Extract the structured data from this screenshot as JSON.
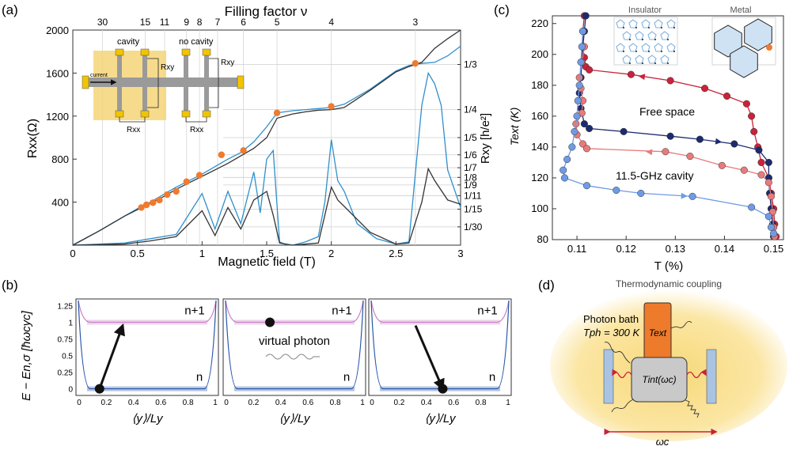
{
  "panel_labels": {
    "a": "(a)",
    "b": "(b)",
    "c": "(c)",
    "d": "(d)"
  },
  "colors": {
    "blue": "#2f8fcc",
    "black": "#333333",
    "orange": "#f07a2e",
    "red": "#c8233a",
    "pink": "#e77b7b",
    "navy": "#1c2a6e",
    "lightblue": "#6f9be4",
    "purple": "#c87fc6",
    "dotblue": "#2453a8"
  },
  "panel_a": {
    "top_axis_title": "Filling factor ν",
    "top_ticks": [
      "30",
      "15",
      "11",
      "9",
      "8",
      "7",
      "6",
      "5",
      "4",
      "3"
    ],
    "ylabel_left": "Rxx(Ω)",
    "ylabel_right": "Rxy [h/e²]",
    "xlabel": "Magnetic field (T)",
    "right_ticks": [
      "1/3",
      "1/4",
      "1/5",
      "1/6",
      "1/7",
      "1/8",
      "1/9",
      "1/11",
      "1/15",
      "1/30"
    ],
    "inset": {
      "cavity": "cavity",
      "no_cavity": "no cavity",
      "current": "current",
      "rxy1": "Rxy",
      "rxy2": "Rxy",
      "rxx1": "Rxx",
      "rxx2": "Rxx"
    }
  },
  "panel_b": {
    "ylabel": "E − En,σ [ħωcyc]",
    "xlabel": "⟨y⟩/Ly",
    "upper_label": "n+1",
    "lower_label": "n",
    "virtual_photon": "virtual photon",
    "yticks": [
      "1.25",
      "1",
      "0.75",
      "0.5",
      "0.25",
      "0"
    ],
    "xticks": [
      "0",
      "0.2",
      "0.4",
      "0.6",
      "0.8",
      "1"
    ],
    "dot_positions": [
      0.15,
      0.32,
      0.52
    ],
    "arrows": [
      [
        0.15,
        0.0,
        0.32,
        0.95
      ],
      null,
      [
        0.32,
        0.95,
        0.52,
        0.0
      ]
    ]
  },
  "panel_c": {
    "ylabel": "Text (K)",
    "xlabel": "T (%)",
    "insulator": "Insulator",
    "metal": "Metal",
    "free_space": "Free space",
    "cavity": "11.5-GHz cavity"
  },
  "panel_d": {
    "title": "Thermodynamic coupling",
    "bath_line1": "Photon bath",
    "bath_line2": "Tph = 300 K",
    "text_label": "Text",
    "tint_label": "Tint(ωc)",
    "omega_label": "ωc"
  },
  "chart_data": [
    {
      "type": "line",
      "title": "",
      "xlabel": "Magnetic field (T)",
      "ylabel": "Rxx(Ω)",
      "xlim": [
        0,
        3
      ],
      "ylim": [
        0,
        2000
      ],
      "xticks": [
        0,
        0.5,
        1,
        1.5,
        2,
        2.5,
        3
      ],
      "yticks": [
        400,
        800,
        1200,
        1600,
        2000
      ],
      "top_axis": {
        "label": "Filling factor ν",
        "ticks": [
          {
            "label": "30",
            "x": 0.23
          },
          {
            "label": "15",
            "x": 0.56
          },
          {
            "label": "11",
            "x": 0.71
          },
          {
            "label": "9",
            "x": 0.88
          },
          {
            "label": "8",
            "x": 0.98
          },
          {
            "label": "7",
            "x": 1.12
          },
          {
            "label": "6",
            "x": 1.32
          },
          {
            "label": "5",
            "x": 1.58
          },
          {
            "label": "4",
            "x": 2.0
          },
          {
            "label": "3",
            "x": 2.65
          }
        ]
      },
      "right_axis": {
        "label": "Rxy [h/e²]",
        "ticks": [
          {
            "label": "1/3",
            "y": 1680
          },
          {
            "label": "1/4",
            "y": 1260
          },
          {
            "label": "1/5",
            "y": 1000
          },
          {
            "label": "1/6",
            "y": 840
          },
          {
            "label": "1/7",
            "y": 720
          },
          {
            "label": "1/8",
            "y": 630
          },
          {
            "label": "1/9",
            "y": 560
          },
          {
            "label": "1/11",
            "y": 460
          },
          {
            "label": "1/15",
            "y": 335
          },
          {
            "label": "1/30",
            "y": 170
          }
        ]
      },
      "series": [
        {
          "color": "#2f8fcc",
          "x": [
            0,
            0.2,
            0.4,
            0.5,
            0.6,
            0.7,
            0.8,
            0.9,
            1.0,
            1.1,
            1.2,
            1.3,
            1.4,
            1.5,
            1.58,
            1.7,
            1.8,
            1.9,
            2.0,
            2.1,
            2.3,
            2.5,
            2.6,
            2.65,
            2.7,
            2.8,
            2.9,
            3.0
          ],
          "y": [
            0,
            130,
            270,
            340,
            400,
            470,
            540,
            600,
            660,
            730,
            800,
            860,
            960,
            1100,
            1230,
            1250,
            1260,
            1270,
            1280,
            1310,
            1450,
            1620,
            1670,
            1680,
            1690,
            1700,
            1760,
            1850
          ]
        },
        {
          "color": "#333333",
          "x": [
            0,
            0.2,
            0.4,
            0.5,
            0.6,
            0.7,
            0.8,
            0.9,
            1.0,
            1.1,
            1.2,
            1.3,
            1.4,
            1.5,
            1.58,
            1.7,
            1.8,
            1.9,
            2.0,
            2.1,
            2.3,
            2.5,
            2.6,
            2.65,
            2.7,
            2.8,
            2.9,
            3.0
          ],
          "y": [
            0,
            130,
            270,
            330,
            390,
            450,
            520,
            580,
            640,
            700,
            760,
            830,
            900,
            1000,
            1180,
            1220,
            1240,
            1255,
            1260,
            1280,
            1440,
            1610,
            1660,
            1680,
            1700,
            1830,
            1920,
            2000
          ]
        },
        {
          "color": "#2f8fcc",
          "x": [
            0,
            0.4,
            0.6,
            0.8,
            1.0,
            1.1,
            1.2,
            1.3,
            1.4,
            1.45,
            1.5,
            1.55,
            1.6,
            1.65,
            1.7,
            1.8,
            1.9,
            1.95,
            2.0,
            2.05,
            2.1,
            2.2,
            2.35,
            2.5,
            2.6,
            2.7,
            2.75,
            2.8,
            2.85,
            2.9,
            3.0
          ],
          "y": [
            0,
            20,
            60,
            100,
            480,
            150,
            500,
            200,
            680,
            300,
            800,
            880,
            30,
            5,
            0,
            30,
            80,
            400,
            980,
            600,
            500,
            200,
            60,
            10,
            30,
            1300,
            1600,
            1500,
            1300,
            700,
            350
          ]
        },
        {
          "color": "#333333",
          "x": [
            0,
            0.4,
            0.6,
            0.8,
            1.0,
            1.1,
            1.2,
            1.3,
            1.4,
            1.5,
            1.55,
            1.6,
            1.7,
            1.9,
            2.0,
            2.05,
            2.1,
            2.3,
            2.5,
            2.6,
            2.7,
            2.75,
            2.8,
            2.9,
            3.0
          ],
          "y": [
            0,
            10,
            40,
            80,
            320,
            90,
            350,
            150,
            420,
            500,
            280,
            20,
            0,
            20,
            540,
            420,
            360,
            120,
            10,
            20,
            400,
            710,
            600,
            420,
            380
          ]
        }
      ],
      "markers": [
        {
          "x": 0.53,
          "y": 350
        },
        {
          "x": 0.57,
          "y": 375
        },
        {
          "x": 0.62,
          "y": 395
        },
        {
          "x": 0.67,
          "y": 420
        },
        {
          "x": 0.73,
          "y": 470
        },
        {
          "x": 0.8,
          "y": 500
        },
        {
          "x": 0.88,
          "y": 590
        },
        {
          "x": 0.98,
          "y": 650
        },
        {
          "x": 1.15,
          "y": 840
        },
        {
          "x": 1.32,
          "y": 880
        },
        {
          "x": 1.58,
          "y": 1230
        },
        {
          "x": 2.0,
          "y": 1290
        },
        {
          "x": 2.65,
          "y": 1690
        }
      ]
    },
    {
      "type": "scatter",
      "xlabel": "⟨y⟩/Ly",
      "ylabel": "E − En,σ [ħωcyc]",
      "xlim": [
        0,
        1
      ],
      "ylim": [
        -0.1,
        1.35
      ],
      "bands": [
        {
          "label": "n+1",
          "level": 1.0
        },
        {
          "label": "n",
          "level": 0.0
        }
      ],
      "subpanels": [
        {
          "dot": [
            0.15,
            0.0
          ]
        },
        {
          "dot": [
            0.32,
            1.0
          ]
        },
        {
          "dot": [
            0.52,
            0.0
          ]
        }
      ]
    },
    {
      "type": "scatter",
      "xlabel": "T (%)",
      "ylabel": "Text (K)",
      "xlim": [
        0.105,
        0.152
      ],
      "ylim": [
        80,
        225
      ],
      "xticks": [
        0.11,
        0.12,
        0.13,
        0.14,
        0.15
      ],
      "yticks": [
        80,
        100,
        120,
        140,
        160,
        180,
        200,
        220
      ],
      "series": [
        {
          "color": "#c8233a",
          "points": [
            [
              0.1115,
              225
            ],
            [
              0.1112,
              215
            ],
            [
              0.1112,
              205
            ],
            [
              0.1115,
              198
            ],
            [
              0.1118,
              192
            ],
            [
              0.1125,
              190
            ],
            [
              0.121,
              187
            ],
            [
              0.129,
              183
            ],
            [
              0.136,
              178
            ],
            [
              0.1405,
              173
            ],
            [
              0.1445,
              168
            ],
            [
              0.1455,
              160
            ],
            [
              0.146,
              150
            ],
            [
              0.1468,
              140
            ],
            [
              0.1475,
              130
            ],
            [
              0.149,
              120
            ],
            [
              0.1495,
              110
            ],
            [
              0.15,
              100
            ],
            [
              0.1502,
              90
            ],
            [
              0.1505,
              82
            ]
          ]
        },
        {
          "color": "#1c2a6e",
          "points": [
            [
              0.1118,
              225
            ],
            [
              0.1115,
              215
            ],
            [
              0.1112,
              205
            ],
            [
              0.111,
              195
            ],
            [
              0.1108,
              185
            ],
            [
              0.1105,
              175
            ],
            [
              0.1108,
              165
            ],
            [
              0.1115,
              155
            ],
            [
              0.1125,
              152
            ],
            [
              0.1195,
              150
            ],
            [
              0.129,
              147
            ],
            [
              0.135,
              145
            ],
            [
              0.142,
              142
            ],
            [
              0.147,
              138
            ],
            [
              0.149,
              130
            ],
            [
              0.149,
              120
            ],
            [
              0.1492,
              110
            ],
            [
              0.1495,
              100
            ],
            [
              0.1498,
              90
            ],
            [
              0.15,
              82
            ]
          ]
        },
        {
          "color": "#e77b7b",
          "points": [
            [
              0.1115,
              205
            ],
            [
              0.111,
              195
            ],
            [
              0.1105,
              185
            ],
            [
              0.1108,
              178
            ],
            [
              0.1112,
              170
            ],
            [
              0.111,
              162
            ],
            [
              0.1098,
              155
            ],
            [
              0.11,
              148
            ],
            [
              0.1112,
              142
            ],
            [
              0.112,
              139
            ],
            [
              0.128,
              137
            ],
            [
              0.133,
              134
            ],
            [
              0.1395,
              128
            ],
            [
              0.144,
              125
            ],
            [
              0.1475,
              122
            ],
            [
              0.149,
              117
            ],
            [
              0.1495,
              108
            ],
            [
              0.1498,
              98
            ],
            [
              0.15,
              88
            ],
            [
              0.1502,
              82
            ]
          ]
        },
        {
          "color": "#6f9be4",
          "points": [
            [
              0.1112,
              215
            ],
            [
              0.111,
              205
            ],
            [
              0.1108,
              195
            ],
            [
              0.1105,
              180
            ],
            [
              0.1102,
              170
            ],
            [
              0.11,
              160
            ],
            [
              0.1095,
              150
            ],
            [
              0.109,
              140
            ],
            [
              0.108,
              132
            ],
            [
              0.1072,
              125
            ],
            [
              0.1075,
              120
            ],
            [
              0.112,
              115
            ],
            [
              0.118,
              112
            ],
            [
              0.123,
              110
            ],
            [
              0.1335,
              108
            ],
            [
              0.1455,
              101
            ],
            [
              0.149,
              95
            ],
            [
              0.1495,
              88
            ],
            [
              0.15,
              84
            ]
          ]
        }
      ]
    }
  ]
}
